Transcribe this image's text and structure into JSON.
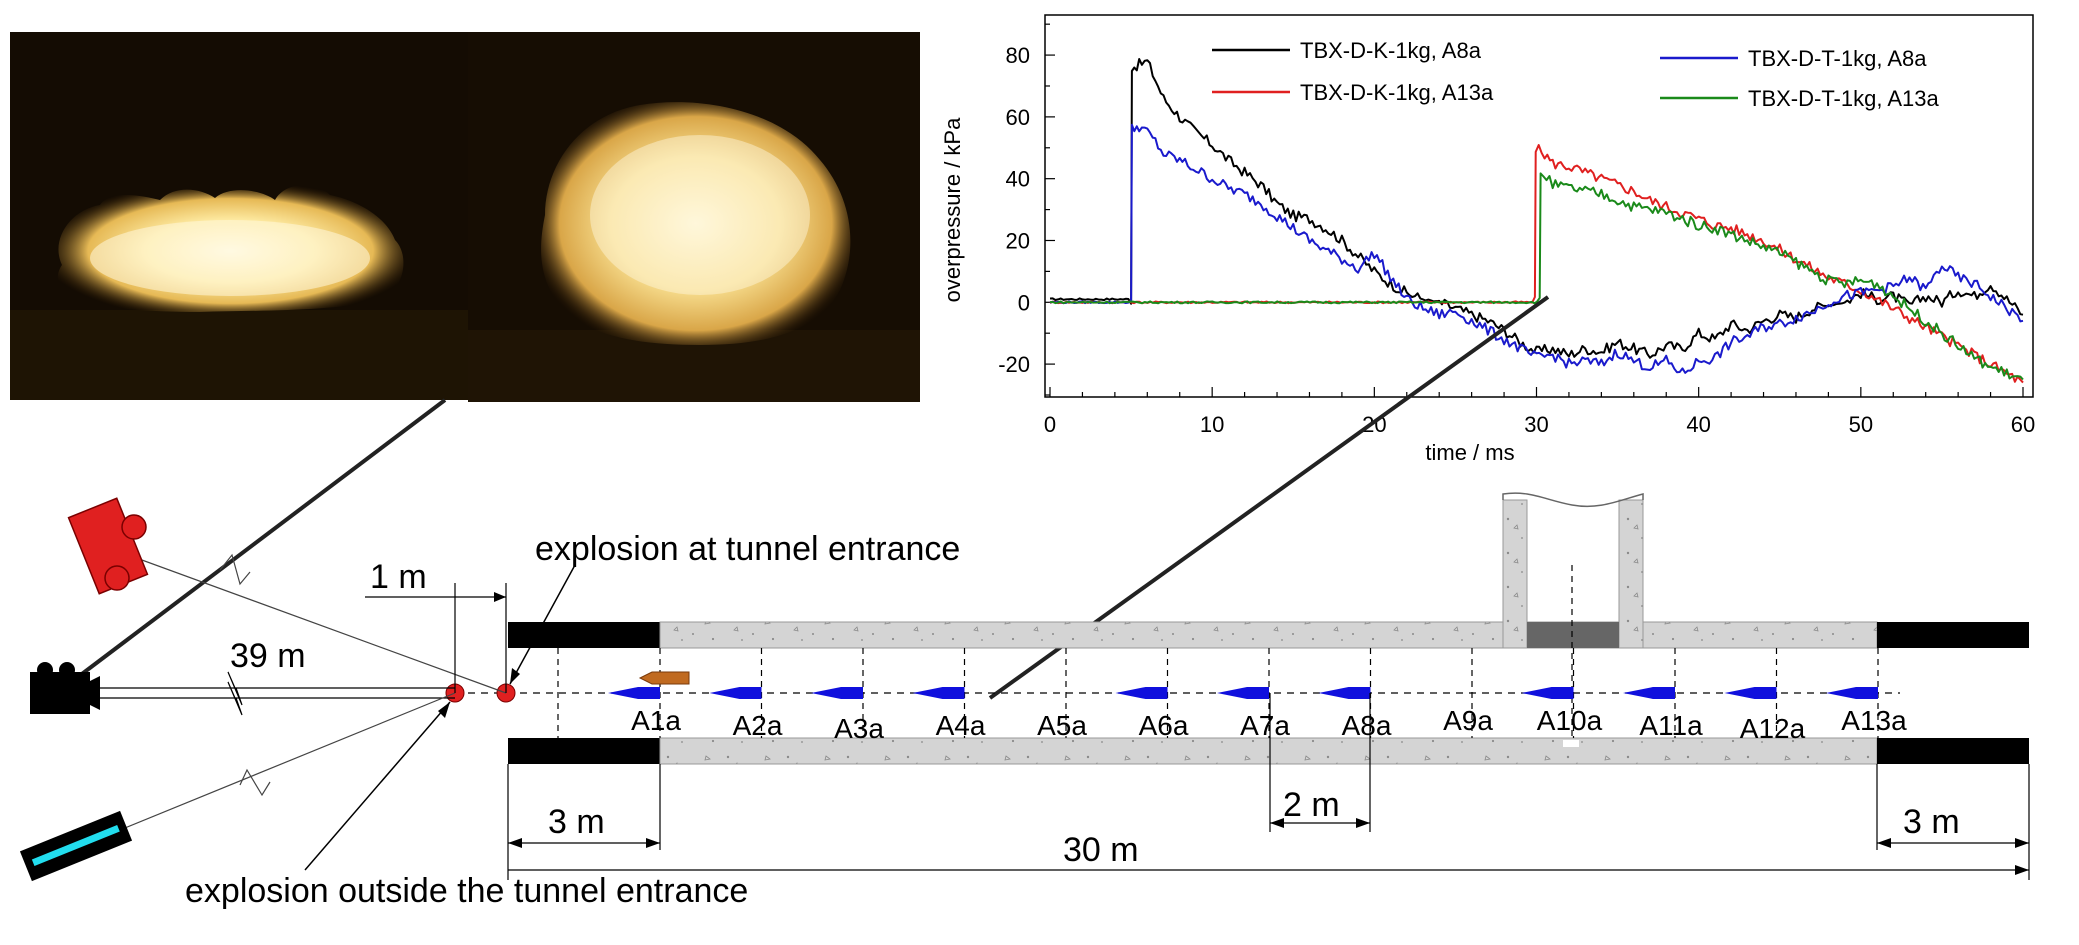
{
  "photos": [
    {
      "name": "fireball-photo-outside"
    },
    {
      "name": "fireball-photo-entrance"
    }
  ],
  "chart_data": {
    "type": "line",
    "xlabel": "time / ms",
    "ylabel": "overpressure / kPa",
    "xlim": [
      0,
      60
    ],
    "ylim": [
      -30,
      92
    ],
    "xticks": [
      "0",
      "10",
      "20",
      "30",
      "40",
      "50",
      "60"
    ],
    "yticks": [
      "-20",
      "0",
      "20",
      "40",
      "60",
      "80"
    ],
    "grid": false,
    "legend": [
      {
        "label": "TBX-D-K-1kg, A8a",
        "color": "#000000"
      },
      {
        "label": "TBX-D-K-1kg, A13a",
        "color": "#e02020"
      },
      {
        "label": "TBX-D-T-1kg, A8a",
        "color": "#1a1acc"
      },
      {
        "label": "TBX-D-T-1kg, A13a",
        "color": "#1a8a1a"
      }
    ],
    "series": [
      {
        "name": "TBX-D-K-1kg, A8a",
        "color": "#000000",
        "x": [
          0,
          5,
          5.05,
          5.5,
          6,
          6.5,
          7,
          8,
          9,
          10,
          11,
          12,
          13,
          14,
          15,
          16,
          17,
          18,
          19,
          20,
          21,
          22,
          23,
          24,
          25,
          26,
          27,
          28,
          29,
          30,
          31,
          32,
          33,
          34,
          35,
          36,
          37,
          38,
          39,
          40,
          41,
          42,
          43,
          44,
          45,
          46,
          47,
          48,
          49,
          50,
          51,
          52,
          53,
          54,
          55,
          56,
          57,
          58,
          59,
          60
        ],
        "y": [
          1,
          1,
          76,
          77,
          78,
          72,
          66,
          60,
          55,
          51,
          46,
          42,
          38,
          32,
          28,
          27,
          24,
          20,
          15,
          10,
          6,
          3,
          1,
          0,
          -2,
          -4,
          -6,
          -9,
          -13,
          -16,
          -15,
          -17,
          -15,
          -16,
          -13,
          -15,
          -17,
          -14,
          -15,
          -10,
          -12,
          -7,
          -9,
          -6,
          -4,
          -5,
          -2,
          -1,
          0,
          3,
          1,
          2,
          -1,
          2,
          0,
          4,
          2,
          6,
          1,
          -4
        ]
      },
      {
        "name": "TBX-D-K-1kg, A13a",
        "color": "#e02020",
        "x": [
          0,
          29.9,
          29.95,
          30.5,
          31,
          32,
          33,
          34,
          35,
          36,
          37,
          38,
          39,
          40,
          41,
          42,
          43,
          44,
          45,
          46,
          47,
          48,
          49,
          50,
          51,
          52,
          53,
          54,
          55,
          56,
          57,
          58,
          59,
          60
        ],
        "y": [
          0,
          0,
          50,
          48,
          45,
          44,
          42,
          40,
          38,
          36,
          33,
          31,
          29,
          27,
          25,
          24,
          22,
          20,
          17,
          14,
          11,
          8,
          6,
          4,
          1,
          -2,
          -5,
          -8,
          -11,
          -14,
          -17,
          -20,
          -23,
          -26
        ]
      },
      {
        "name": "TBX-D-T-1kg, A8a",
        "color": "#1a1acc",
        "x": [
          0,
          5,
          5.05,
          5.5,
          6,
          6.5,
          7,
          8,
          9,
          10,
          11,
          12,
          13,
          14,
          15,
          16,
          17,
          18,
          19,
          20,
          21,
          22,
          23,
          24,
          25,
          26,
          27,
          28,
          29,
          30,
          31,
          32,
          33,
          34,
          35,
          36,
          37,
          38,
          39,
          40,
          41,
          42,
          43,
          44,
          45,
          46,
          47,
          48,
          49,
          50,
          51,
          52,
          53,
          54,
          55,
          56,
          57,
          58,
          59,
          60
        ],
        "y": [
          0,
          0,
          56,
          57,
          55,
          52,
          48,
          46,
          43,
          40,
          37,
          35,
          32,
          28,
          24,
          20,
          17,
          14,
          11,
          16,
          8,
          1,
          -2,
          -4,
          -3,
          -6,
          -9,
          -12,
          -15,
          -18,
          -17,
          -20,
          -19,
          -20,
          -16,
          -19,
          -21,
          -19,
          -23,
          -19,
          -18,
          -13,
          -11,
          -8,
          -7,
          -5,
          -3,
          0,
          2,
          3,
          4,
          5,
          8,
          4,
          12,
          8,
          6,
          2,
          -2,
          -6
        ]
      },
      {
        "name": "TBX-D-T-1kg, A13a",
        "color": "#1a8a1a",
        "x": [
          0,
          30.2,
          30.25,
          30.8,
          31,
          32,
          33,
          34,
          35,
          36,
          37,
          38,
          39,
          40,
          41,
          42,
          43,
          44,
          45,
          46,
          47,
          48,
          49,
          50,
          51,
          52,
          53,
          54,
          55,
          56,
          57,
          58,
          59,
          60
        ],
        "y": [
          0,
          0,
          42,
          40,
          38,
          37,
          36,
          35,
          33,
          31,
          30,
          29,
          27,
          25,
          24,
          22,
          20,
          18,
          16,
          13,
          10,
          7,
          6,
          7,
          6,
          2,
          -2,
          -6,
          -10,
          -14,
          -18,
          -21,
          -23,
          -25
        ]
      }
    ]
  },
  "diagram": {
    "labels": {
      "one_m": "1 m",
      "thirty_nine_m": "39 m",
      "explosion_entrance": "explosion at tunnel entrance",
      "explosion_outside": "explosion outside the tunnel entrance",
      "three_m_left": "3 m",
      "two_m": "2 m",
      "thirty_m": "30 m",
      "three_m_right": "3 m"
    },
    "gauges": [
      "A1a",
      "A2a",
      "A3a",
      "A4a",
      "A5a",
      "A6a",
      "A7a",
      "A8a",
      "A9a",
      "A10a",
      "A11a",
      "A12a",
      "A13a"
    ],
    "colors": {
      "charge": "#e02020",
      "gauge": "#1010dd",
      "concrete": "#d4d4d4",
      "portal": "#000000",
      "shaft_base": "#666666",
      "camera_red": "#e02020",
      "camera_cyan": "#22ddee"
    }
  }
}
